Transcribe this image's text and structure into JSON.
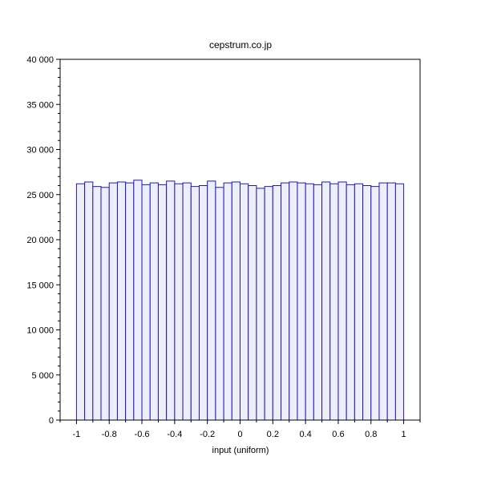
{
  "chart_data": {
    "type": "bar",
    "title": "cepstrum.co.jp",
    "xlabel": "input (uniform)",
    "ylabel": "",
    "xlim": [
      -1.1,
      1.1
    ],
    "ylim": [
      0,
      40000
    ],
    "bin_edges_range": [
      -1,
      1
    ],
    "bin_count": 40,
    "x_ticks": [
      -1,
      -0.8,
      -0.6,
      -0.4,
      -0.2,
      0,
      0.2,
      0.4,
      0.6,
      0.8,
      1
    ],
    "x_tick_labels": [
      "-1",
      "-0.8",
      "-0.6",
      "-0.4",
      "-0.2",
      "0",
      "0.2",
      "0.4",
      "0.6",
      "0.8",
      "1"
    ],
    "y_ticks": [
      0,
      5000,
      10000,
      15000,
      20000,
      25000,
      30000,
      35000,
      40000
    ],
    "y_tick_labels": [
      "0",
      "5 000",
      "10 000",
      "15 000",
      "20 000",
      "25 000",
      "30 000",
      "35 000",
      "40 000"
    ],
    "values": [
      26200,
      26400,
      25900,
      25800,
      26300,
      26400,
      26300,
      26600,
      26100,
      26300,
      26100,
      26500,
      26200,
      26300,
      25900,
      26000,
      26500,
      25800,
      26300,
      26400,
      26200,
      26000,
      25700,
      25900,
      26000,
      26300,
      26400,
      26300,
      26200,
      26100,
      26400,
      26200,
      26400,
      26100,
      26200,
      26000,
      25900,
      26300,
      26300,
      26200
    ],
    "bar_fill": "#eeeefa",
    "bar_stroke": "#1a1aba",
    "grid": false
  }
}
